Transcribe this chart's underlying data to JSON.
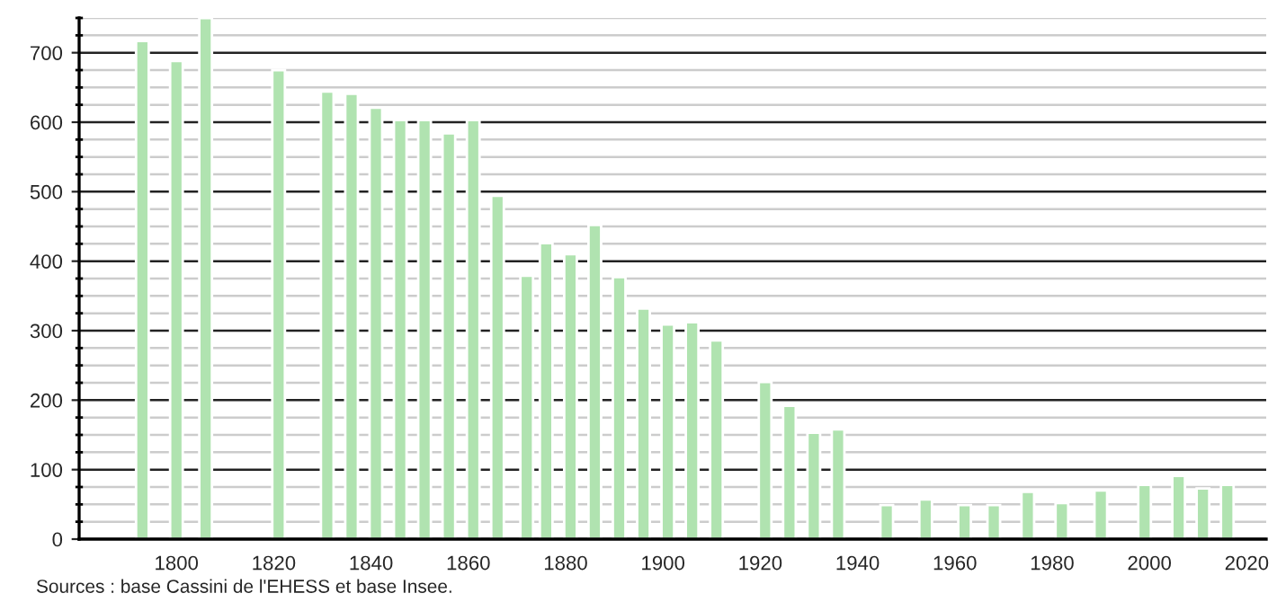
{
  "chart_data": {
    "type": "bar",
    "color": "#b0e3b0",
    "x": [
      1793,
      1800,
      1806,
      1821,
      1831,
      1836,
      1841,
      1846,
      1851,
      1856,
      1861,
      1866,
      1872,
      1876,
      1881,
      1886,
      1891,
      1896,
      1901,
      1906,
      1911,
      1921,
      1926,
      1931,
      1936,
      1946,
      1954,
      1962,
      1968,
      1975,
      1982,
      1990,
      1999,
      2006,
      2011,
      2016
    ],
    "values": [
      717,
      688,
      750,
      675,
      644,
      641,
      621,
      603,
      603,
      584,
      603,
      494,
      379,
      426,
      410,
      452,
      377,
      332,
      309,
      312,
      286,
      226,
      192,
      153,
      158,
      49,
      57,
      49,
      49,
      68,
      52,
      70,
      78,
      91,
      73,
      78
    ],
    "xlim": [
      1780,
      2024
    ],
    "xticks": [
      1800,
      1820,
      1840,
      1860,
      1880,
      1900,
      1920,
      1940,
      1960,
      1980,
      2000,
      2020
    ],
    "ylim": [
      0,
      750
    ],
    "yticks": [
      0,
      100,
      200,
      300,
      400,
      500,
      600,
      700
    ],
    "grid": "y",
    "annotations": [
      "Sources : base Cassini de l'EHESS et base Insee."
    ]
  }
}
